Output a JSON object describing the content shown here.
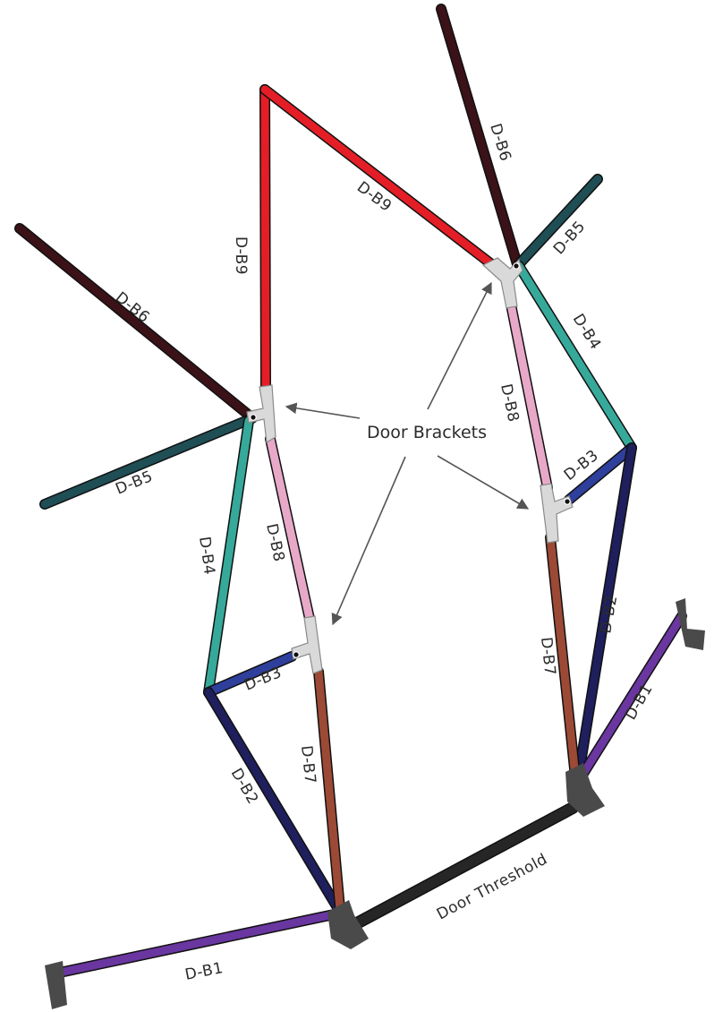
{
  "labels": {
    "b1": "D-B1",
    "b2": "D-B2",
    "b3": "D-B3",
    "b4": "D-B4",
    "b5": "D-B5",
    "b6": "D-B6",
    "b7": "D-B7",
    "b8": "D-B8",
    "b9": "D-B9",
    "door_threshold": "Door Threshold",
    "door_brackets": "Door Brackets"
  },
  "colors": {
    "b1": "#6a36a0",
    "b2": "#1e1f5c",
    "b3": "#2f3f9c",
    "b4": "#36a99a",
    "b5": "#1f4e55",
    "b6": "#3a1218",
    "b7": "#9c4a35",
    "b8": "#e8a9c9",
    "b9": "#e41e26",
    "threshold": "#262626",
    "foot": "#4a4a4a",
    "bracket": "#d9d9d9"
  }
}
